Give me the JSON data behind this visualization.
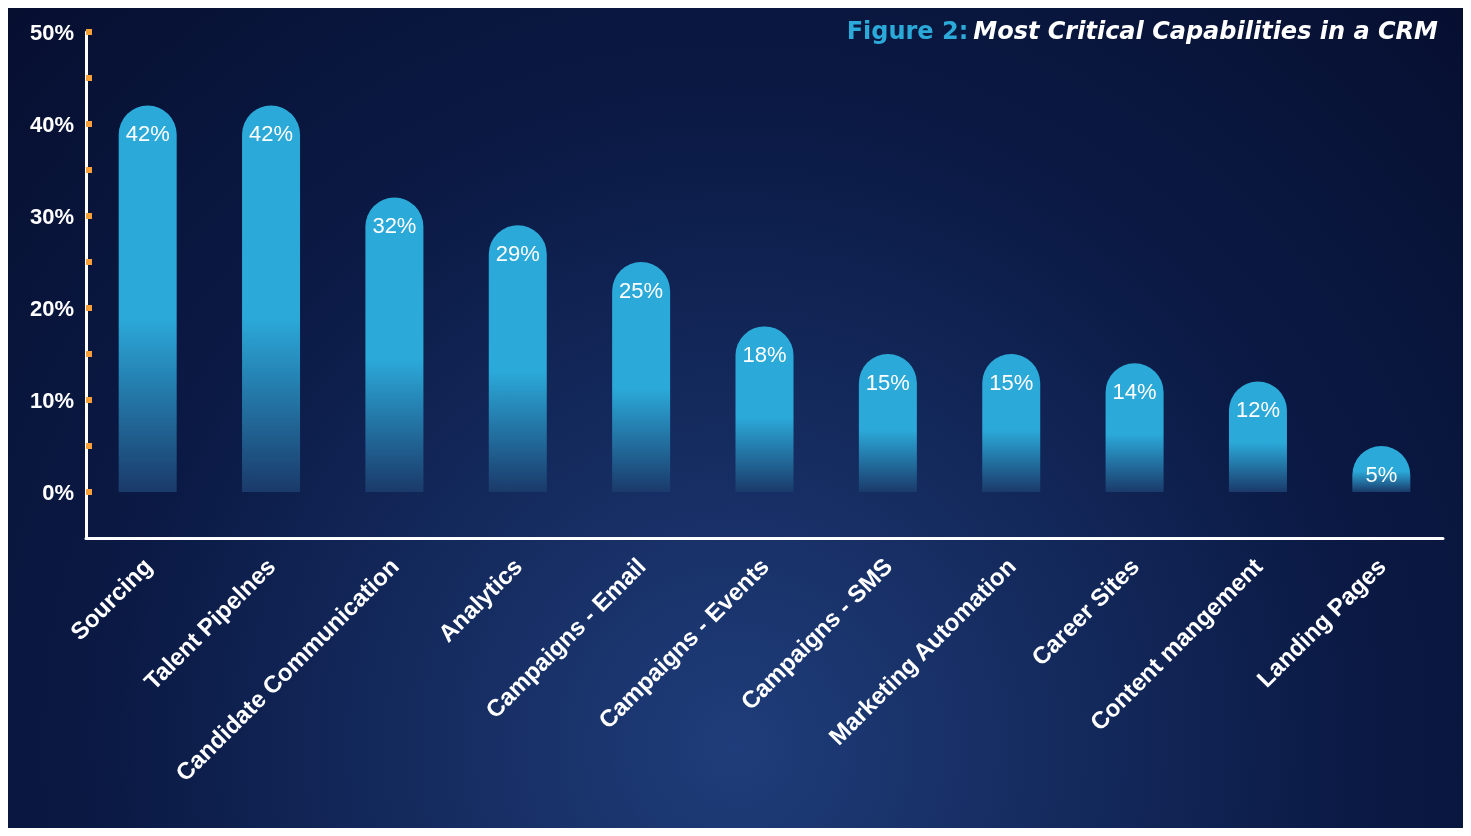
{
  "chart_data": {
    "type": "bar",
    "title": "Figure 2: Most Critical Capabilities in a CRM",
    "categories": [
      "Sourcing",
      "Talent Pipelnes",
      "Candidate Communication",
      "Analytics",
      "Campaigns - Email",
      "Campaigns - Events",
      "Campaigns - SMS",
      "Marketing Automation",
      "Career Sites",
      "Content mangement",
      "Landing Pages"
    ],
    "values": [
      42,
      42,
      32,
      29,
      25,
      18,
      15,
      15,
      14,
      12,
      5
    ],
    "value_labels": [
      "42%",
      "42%",
      "32%",
      "29%",
      "25%",
      "18%",
      "15%",
      "15%",
      "14%",
      "12%",
      "5%"
    ],
    "color": "#2ba9d9",
    "ylim": [
      -5,
      50
    ],
    "yticks": [
      {
        "value": 0,
        "label": "0%"
      },
      {
        "value": 5,
        "label": null
      },
      {
        "value": 10,
        "label": "10%"
      },
      {
        "value": 15,
        "label": null
      },
      {
        "value": 20,
        "label": "20%"
      },
      {
        "value": 25,
        "label": null
      },
      {
        "value": 30,
        "label": "30%"
      },
      {
        "value": 35,
        "label": null
      },
      {
        "value": 40,
        "label": "40%"
      },
      {
        "value": 45,
        "label": null
      },
      {
        "value": 50,
        "label": "50%"
      }
    ],
    "grid": false
  }
}
